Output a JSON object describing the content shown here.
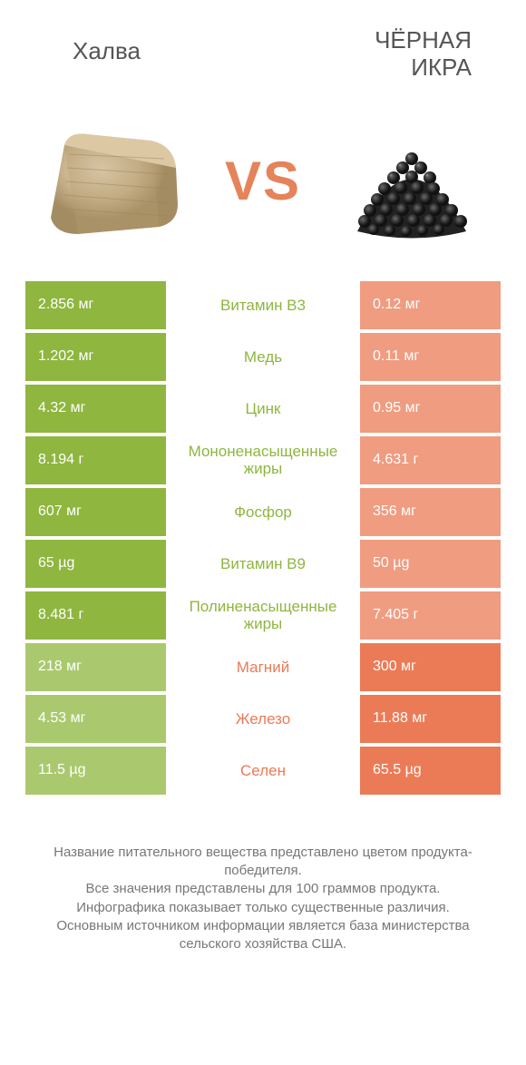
{
  "colors": {
    "left_win": "#8fb63f",
    "right_win": "#eb7b56",
    "left_lose": "#aac96e",
    "right_lose": "#f09c80",
    "mid_left_text": "#8fb63f",
    "mid_right_text": "#eb7b56",
    "vs_text": "#e5835a",
    "header_text": "#555555",
    "footer_text": "#777777"
  },
  "header": {
    "left": "Халва",
    "right": "ЧЁРНАЯ\nИКРА"
  },
  "vs": "VS",
  "rows": [
    {
      "left": "2.856 мг",
      "mid": "Витамин B3",
      "right": "0.12 мг",
      "winner": "left"
    },
    {
      "left": "1.202 мг",
      "mid": "Медь",
      "right": "0.11 мг",
      "winner": "left"
    },
    {
      "left": "4.32 мг",
      "mid": "Цинк",
      "right": "0.95 мг",
      "winner": "left"
    },
    {
      "left": "8.194 г",
      "mid": "Мононенасыщенные жиры",
      "right": "4.631 г",
      "winner": "left"
    },
    {
      "left": "607 мг",
      "mid": "Фосфор",
      "right": "356 мг",
      "winner": "left"
    },
    {
      "left": "65 µg",
      "mid": "Витамин B9",
      "right": "50 µg",
      "winner": "left"
    },
    {
      "left": "8.481 г",
      "mid": "Полиненасыщенные жиры",
      "right": "7.405 г",
      "winner": "left"
    },
    {
      "left": "218 мг",
      "mid": "Магний",
      "right": "300 мг",
      "winner": "right"
    },
    {
      "left": "4.53 мг",
      "mid": "Железо",
      "right": "11.88 мг",
      "winner": "right"
    },
    {
      "left": "11.5 µg",
      "mid": "Селен",
      "right": "65.5 µg",
      "winner": "right"
    }
  ],
  "footer": {
    "l1": "Название питательного вещества представлено цветом продукта-победителя.",
    "l2": "Все значения представлены для 100 граммов продукта.",
    "l3": "Инфографика показывает только существенные различия.",
    "l4": "Основным источником информации является база министерства сельского хозяйства США."
  }
}
